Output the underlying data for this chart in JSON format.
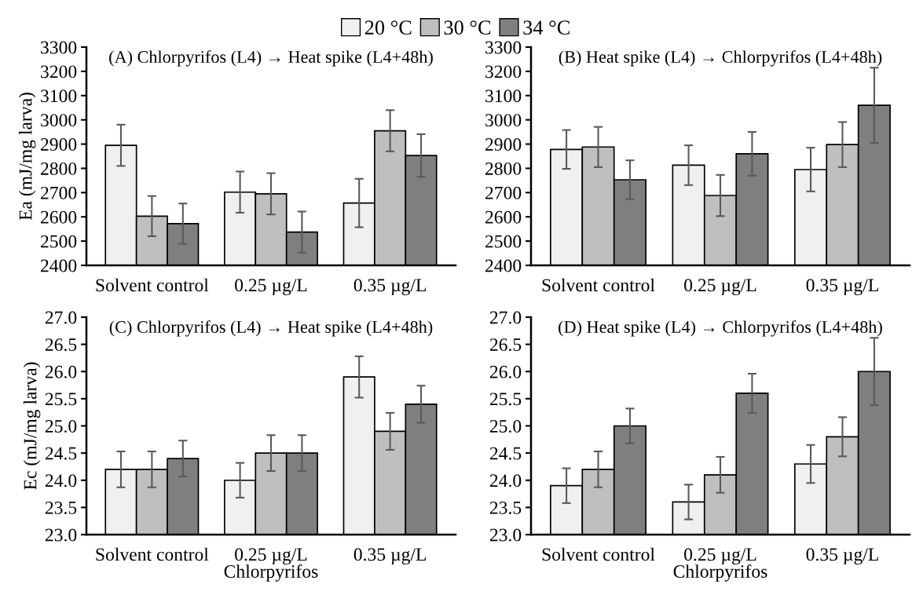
{
  "chart_data": [
    {
      "type": "bar",
      "title": "(A) Chlorpyrifos (L4) → Heat spike (L4+48h)",
      "ylabel": "Ea (mJ/mg larva)",
      "categories": [
        "Solvent control",
        "0.25 µg/L",
        "0.35 µg/L"
      ],
      "ylim": [
        2400,
        3300
      ],
      "yticks": [
        2400,
        2500,
        2600,
        2700,
        2800,
        2900,
        3000,
        3100,
        3200,
        3300
      ],
      "legend": "top",
      "series": [
        {
          "name": "20 °C",
          "color": "#f0f0f0",
          "values": [
            2895,
            2702,
            2657
          ],
          "errors": [
            85,
            85,
            100
          ]
        },
        {
          "name": "30 °C",
          "color": "#bfbfbf",
          "values": [
            2603,
            2695,
            2955
          ],
          "errors": [
            83,
            85,
            85
          ]
        },
        {
          "name": "34 °C",
          "color": "#7f7f7f",
          "values": [
            2572,
            2537,
            2853
          ],
          "errors": [
            83,
            85,
            88
          ]
        }
      ]
    },
    {
      "type": "bar",
      "title": "(B) Heat spike (L4) → Chlorpyrifos (L4+48h)",
      "categories": [
        "Solvent control",
        "0.25 µg/L",
        "0.35 µg/L"
      ],
      "ylim": [
        2400,
        3300
      ],
      "yticks": [
        2400,
        2500,
        2600,
        2700,
        2800,
        2900,
        3000,
        3100,
        3200,
        3300
      ],
      "series": [
        {
          "color": "#f0f0f0",
          "values": [
            2878,
            2813,
            2795
          ],
          "errors": [
            80,
            82,
            90
          ]
        },
        {
          "color": "#bfbfbf",
          "values": [
            2888,
            2688,
            2898
          ],
          "errors": [
            83,
            85,
            93
          ]
        },
        {
          "color": "#7f7f7f",
          "values": [
            2753,
            2860,
            3060
          ],
          "errors": [
            80,
            90,
            155
          ]
        }
      ]
    },
    {
      "type": "bar",
      "title": "(C) Chlorpyrifos (L4) → Heat spike (L4+48h)",
      "ylabel": "Ec (mJ/mg larva)",
      "xlabel": "Chlorpyrifos",
      "categories": [
        "Solvent control",
        "0.25 µg/L",
        "0.35 µg/L"
      ],
      "ylim": [
        23.0,
        27.0
      ],
      "yticks": [
        {
          "value": 23,
          "label": "23.0"
        },
        {
          "value": 23.5,
          "label": "23.5"
        },
        {
          "value": 24,
          "label": "24.0"
        },
        {
          "value": 24.5,
          "label": "24.5"
        },
        {
          "value": 25,
          "label": "25.0"
        },
        {
          "value": 25.5,
          "label": "25.5"
        },
        {
          "value": 26,
          "label": "26.0"
        },
        {
          "value": 26.5,
          "label": "26.5"
        },
        {
          "value": 27,
          "label": "27.0"
        }
      ],
      "series": [
        {
          "color": "#f0f0f0",
          "values": [
            24.2,
            24.0,
            25.9
          ],
          "errors": [
            0.33,
            0.32,
            0.38
          ]
        },
        {
          "color": "#bfbfbf",
          "values": [
            24.2,
            24.5,
            24.9
          ],
          "errors": [
            0.33,
            0.33,
            0.34
          ]
        },
        {
          "color": "#7f7f7f",
          "values": [
            24.4,
            24.5,
            25.4
          ],
          "errors": [
            0.33,
            0.33,
            0.34
          ]
        }
      ]
    },
    {
      "type": "bar",
      "title": "(D) Heat spike (L4) → Chlorpyrifos (L4+48h)",
      "xlabel": "Chlorpyrifos",
      "categories": [
        "Solvent control",
        "0.25 µg/L",
        "0.35 µg/L"
      ],
      "ylim": [
        23.0,
        27.0
      ],
      "yticks": [
        {
          "value": 23,
          "label": "23.0"
        },
        {
          "value": 23.5,
          "label": "23.5"
        },
        {
          "value": 24,
          "label": "24.0"
        },
        {
          "value": 24.5,
          "label": "24.5"
        },
        {
          "value": 25,
          "label": "25.0"
        },
        {
          "value": 25.5,
          "label": "25.5"
        },
        {
          "value": 26,
          "label": "26.0"
        },
        {
          "value": 26.5,
          "label": "26.5"
        },
        {
          "value": 27,
          "label": "27.0"
        }
      ],
      "series": [
        {
          "color": "#f0f0f0",
          "values": [
            23.9,
            23.6,
            24.3
          ],
          "errors": [
            0.32,
            0.32,
            0.35
          ]
        },
        {
          "color": "#bfbfbf",
          "values": [
            24.2,
            24.1,
            24.8
          ],
          "errors": [
            0.33,
            0.33,
            0.36
          ]
        },
        {
          "color": "#7f7f7f",
          "values": [
            25.0,
            25.6,
            26.0
          ],
          "errors": [
            0.32,
            0.36,
            0.62
          ]
        }
      ]
    }
  ]
}
